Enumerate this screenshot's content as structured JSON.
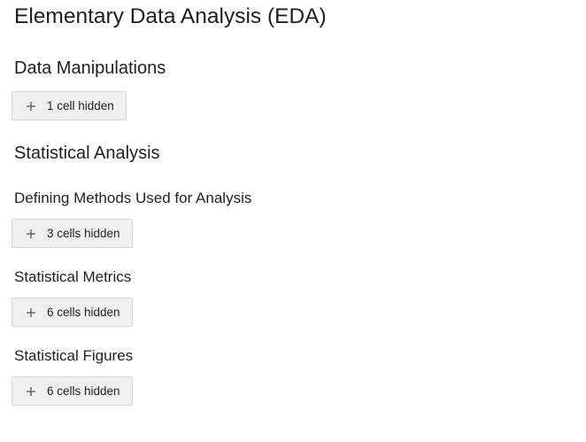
{
  "notebook": {
    "title": "Elementary Data Analysis (EDA)",
    "sections": [
      {
        "heading": "Data Manipulations",
        "hidden_label": "1 cell hidden"
      },
      {
        "heading": "Statistical Analysis"
      },
      {
        "heading": "Defining Methods Used for Analysis",
        "hidden_label": "3 cells hidden"
      },
      {
        "heading": "Statistical Metrics",
        "hidden_label": "6 cells hidden"
      },
      {
        "heading": "Statistical Figures",
        "hidden_label": "6 cells hidden"
      }
    ]
  },
  "icons": {
    "expand": "plus-icon"
  },
  "colors": {
    "button_bg": "#f0f0f0",
    "button_border": "#d6d6d6",
    "text": "#1f1f1f"
  }
}
